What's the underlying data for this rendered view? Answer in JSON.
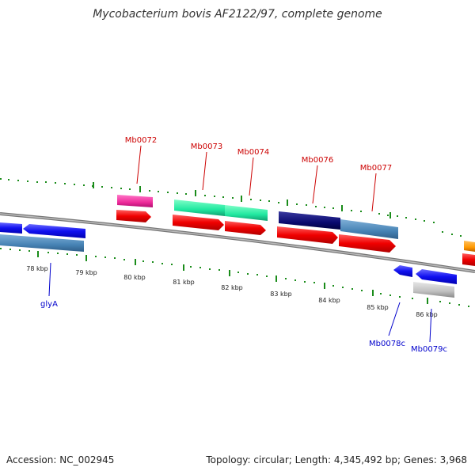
{
  "title": "Mycobacterium bovis AF2122/97, complete genome",
  "footer": {
    "accession": "Accession: NC_002945",
    "summary": "Topology: circular; Length: 4,345,492 bp; Genes: 3,968"
  },
  "colors": {
    "backbone": "#888888",
    "label_red": "#cc0000",
    "label_blue": "#0000cc",
    "tick_green": "#1a8c1a"
  },
  "kbp_labels": [
    "78 kbp",
    "79 kbp",
    "80 kbp",
    "81 kbp",
    "82 kbp",
    "83 kbp",
    "84 kbp",
    "85 kbp",
    "86 kbp"
  ],
  "gene_labels": {
    "Mb0072": "Mb0072",
    "Mb0073": "Mb0073",
    "Mb0074": "Mb0074",
    "Mb0076": "Mb0076",
    "Mb0077": "Mb0077",
    "glyA": "glyA",
    "Mb0078c": "Mb0078c",
    "Mb0079c": "Mb0079c"
  }
}
